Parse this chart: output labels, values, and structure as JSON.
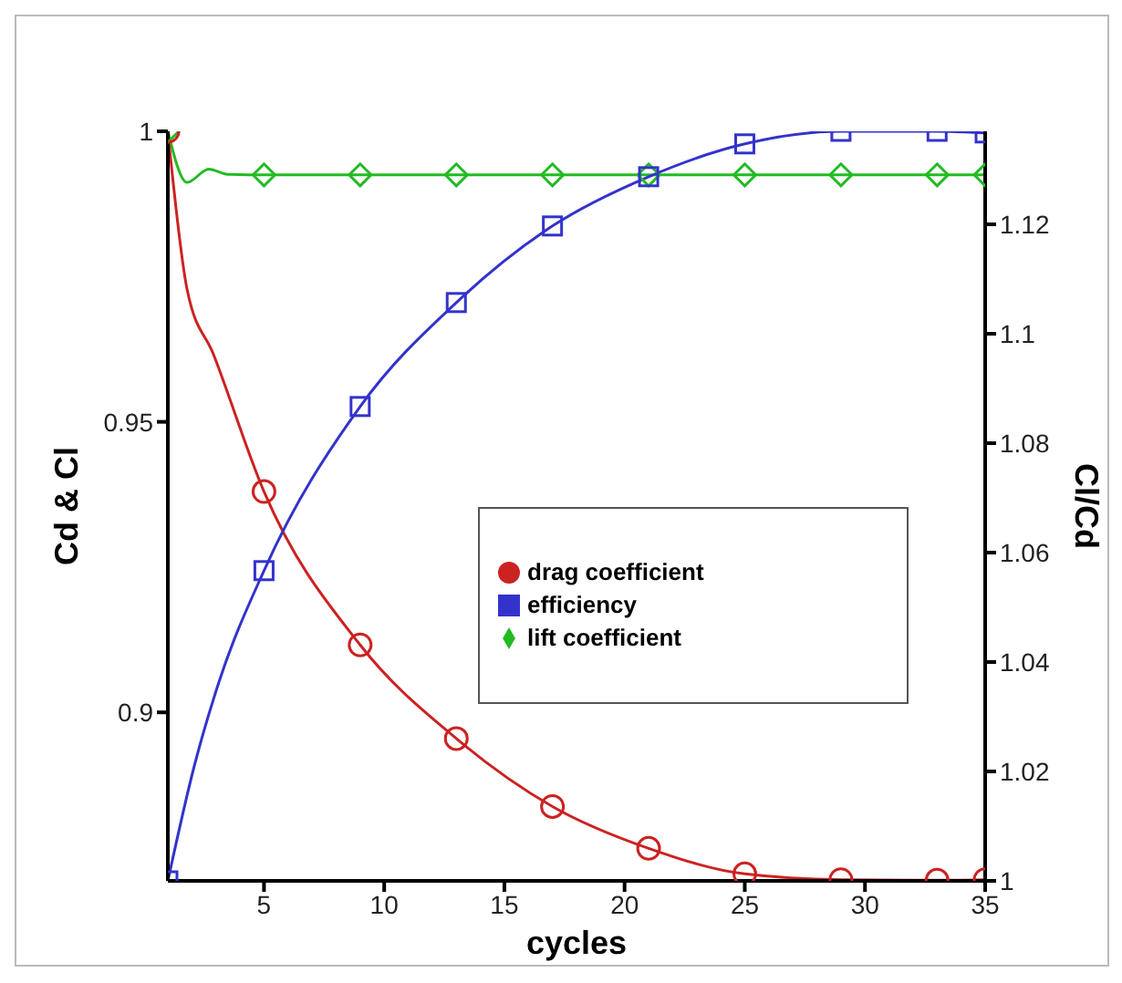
{
  "chart_data": {
    "type": "line",
    "xlabel": "cycles",
    "ylabel": "Cd & Cl",
    "y2label": "Cl/Cd",
    "xlim": [
      1,
      35
    ],
    "xticks": [
      5,
      10,
      15,
      20,
      25,
      30,
      35
    ],
    "ylim": [
      0.871,
      1
    ],
    "yticks": [
      0.9,
      0.95,
      1
    ],
    "y2lim": [
      1,
      1.137
    ],
    "y2ticks": [
      1,
      1.02,
      1.04,
      1.06,
      1.08,
      1.1,
      1.12
    ],
    "legend": "right",
    "line_style": "solid",
    "series": [
      {
        "name": "lift coefficient",
        "color": "#22bb22",
        "marker": "diamond",
        "x": [
          1,
          1.8,
          2.7,
          3.5,
          5,
          9,
          13,
          17,
          21,
          25,
          29,
          33,
          35
        ],
        "values": [
          1,
          0.9912,
          0.9935,
          0.9926,
          0.9925,
          0.9925,
          0.9925,
          0.9925,
          0.9925,
          0.9925,
          0.9925,
          0.9925,
          0.9925
        ]
      },
      {
        "name": "drag coefficient",
        "color": "#cc2222",
        "marker": "circle",
        "x": [
          1,
          1.8,
          2.9,
          5,
          9,
          13,
          17,
          21,
          25,
          29,
          33,
          35
        ],
        "values": [
          1,
          0.9728,
          0.9616,
          0.938,
          0.9116,
          0.8955,
          0.8838,
          0.8766,
          0.8722,
          0.8712,
          0.8711,
          0.8712
        ]
      },
      {
        "name": "efficiency",
        "color": "#3333cc",
        "marker": "square",
        "axis": "y2",
        "x": [
          1,
          2.1,
          3.1,
          5,
          9,
          13,
          17,
          21,
          25,
          29,
          33,
          35
        ],
        "values": [
          1,
          1.021,
          1.036,
          1.0567,
          1.0867,
          1.1057,
          1.1197,
          1.1287,
          1.1347,
          1.137,
          1.137,
          1.1367
        ]
      }
    ]
  }
}
